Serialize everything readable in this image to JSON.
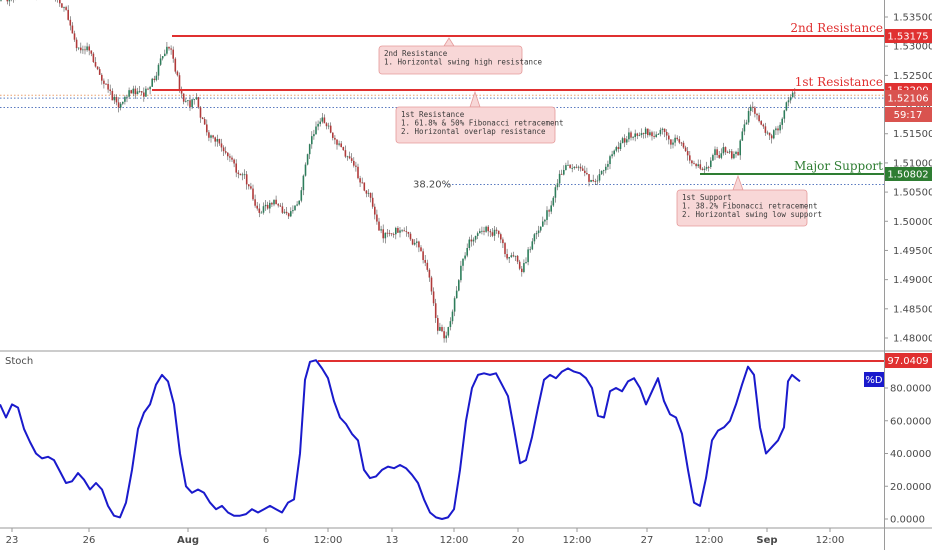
{
  "chart_data": [
    {
      "type": "candlestick",
      "panel": "price",
      "ylim": [
        1.476,
        1.538
      ],
      "y_ticks": [
        "1.53500",
        "1.53000",
        "1.52500",
        "1.52000",
        "1.51500",
        "1.51000",
        "1.50500",
        "1.50000",
        "1.49500",
        "1.49000",
        "1.48500",
        "1.48000"
      ],
      "x_ticks": [
        "23",
        "26",
        "Aug",
        "6",
        "12:00",
        "13",
        "12:00",
        "20",
        "12:00",
        "27",
        "12:00",
        "Sep",
        "12:00"
      ],
      "close_path": [
        [
          0,
          1.5378
        ],
        [
          8,
          1.5384
        ],
        [
          16,
          1.5388
        ],
        [
          24,
          1.539
        ],
        [
          32,
          1.5392
        ],
        [
          40,
          1.539
        ],
        [
          48,
          1.5386
        ],
        [
          56,
          1.538
        ],
        [
          64,
          1.537
        ],
        [
          70,
          1.534
        ],
        [
          76,
          1.5305
        ],
        [
          82,
          1.529
        ],
        [
          88,
          1.53
        ],
        [
          94,
          1.5275
        ],
        [
          100,
          1.525
        ],
        [
          106,
          1.523
        ],
        [
          112,
          1.5215
        ],
        [
          118,
          1.52
        ],
        [
          124,
          1.5205
        ],
        [
          130,
          1.522
        ],
        [
          136,
          1.5225
        ],
        [
          142,
          1.5215
        ],
        [
          148,
          1.5225
        ],
        [
          154,
          1.5245
        ],
        [
          160,
          1.527
        ],
        [
          166,
          1.53
        ],
        [
          172,
          1.5285
        ],
        [
          178,
          1.524
        ],
        [
          184,
          1.5205
        ],
        [
          190,
          1.52
        ],
        [
          196,
          1.521
        ],
        [
          202,
          1.5175
        ],
        [
          208,
          1.5145
        ],
        [
          214,
          1.514
        ],
        [
          220,
          1.513
        ],
        [
          226,
          1.512
        ],
        [
          232,
          1.51
        ],
        [
          238,
          1.5085
        ],
        [
          244,
          1.5075
        ],
        [
          250,
          1.506
        ],
        [
          256,
          1.502
        ],
        [
          262,
          1.502
        ],
        [
          268,
          1.5025
        ],
        [
          274,
          1.503
        ],
        [
          280,
          1.502
        ],
        [
          286,
          1.5015
        ],
        [
          292,
          1.501
        ],
        [
          298,
          1.503
        ],
        [
          304,
          1.508
        ],
        [
          310,
          1.513
        ],
        [
          316,
          1.5165
        ],
        [
          322,
          1.5175
        ],
        [
          328,
          1.516
        ],
        [
          334,
          1.514
        ],
        [
          340,
          1.513
        ],
        [
          346,
          1.5115
        ],
        [
          352,
          1.51
        ],
        [
          358,
          1.508
        ],
        [
          364,
          1.5055
        ],
        [
          370,
          1.504
        ],
        [
          376,
          1.5005
        ],
        [
          382,
          1.4975
        ],
        [
          388,
          1.4975
        ],
        [
          394,
          1.4985
        ],
        [
          400,
          1.498
        ],
        [
          406,
          1.4985
        ],
        [
          412,
          1.4965
        ],
        [
          418,
          1.4965
        ],
        [
          424,
          1.4935
        ],
        [
          430,
          1.4905
        ],
        [
          434,
          1.4855
        ],
        [
          438,
          1.4815
        ],
        [
          444,
          1.4805
        ],
        [
          450,
          1.482
        ],
        [
          456,
          1.488
        ],
        [
          462,
          1.493
        ],
        [
          468,
          1.496
        ],
        [
          474,
          1.4975
        ],
        [
          480,
          1.498
        ],
        [
          486,
          1.4985
        ],
        [
          492,
          1.498
        ],
        [
          498,
          1.4985
        ],
        [
          504,
          1.495
        ],
        [
          510,
          1.4935
        ],
        [
          516,
          1.4935
        ],
        [
          522,
          1.4915
        ],
        [
          528,
          1.4945
        ],
        [
          534,
          1.497
        ],
        [
          540,
          1.4985
        ],
        [
          546,
          1.501
        ],
        [
          552,
          1.503
        ],
        [
          558,
          1.507
        ],
        [
          564,
          1.509
        ],
        [
          570,
          1.5095
        ],
        [
          576,
          1.509
        ],
        [
          582,
          1.5085
        ],
        [
          588,
          1.5075
        ],
        [
          594,
          1.5065
        ],
        [
          600,
          1.508
        ],
        [
          606,
          1.51
        ],
        [
          612,
          1.511
        ],
        [
          618,
          1.5125
        ],
        [
          624,
          1.514
        ],
        [
          630,
          1.515
        ],
        [
          636,
          1.5145
        ],
        [
          642,
          1.5155
        ],
        [
          648,
          1.515
        ],
        [
          654,
          1.514
        ],
        [
          660,
          1.516
        ],
        [
          666,
          1.515
        ],
        [
          672,
          1.5135
        ],
        [
          678,
          1.514
        ],
        [
          684,
          1.5125
        ],
        [
          690,
          1.511
        ],
        [
          696,
          1.5095
        ],
        [
          702,
          1.5085
        ],
        [
          708,
          1.509
        ],
        [
          714,
          1.512
        ],
        [
          720,
          1.5115
        ],
        [
          726,
          1.5125
        ],
        [
          732,
          1.511
        ],
        [
          738,
          1.5115
        ],
        [
          744,
          1.516
        ],
        [
          750,
          1.5195
        ],
        [
          756,
          1.5185
        ],
        [
          762,
          1.516
        ],
        [
          768,
          1.5145
        ],
        [
          774,
          1.515
        ],
        [
          780,
          1.5165
        ],
        [
          786,
          1.52
        ],
        [
          792,
          1.5215
        ],
        [
          798,
          1.5212
        ]
      ],
      "last_price": "1.52106",
      "countdown": "59:17",
      "levels": [
        {
          "name": "2nd Resistance",
          "value": "1.53175",
          "x_start": 172,
          "color": "#e03030"
        },
        {
          "name": "1st Resistance",
          "value": "1.52200",
          "x_start": 152,
          "color": "#e03030"
        },
        {
          "name": "Major Support",
          "value": "1.50802",
          "x_start": 700,
          "color": "#2e7d32"
        }
      ],
      "fib_level": {
        "label": "38.20%",
        "value": 1.5063
      },
      "callouts": [
        {
          "lines": [
            "2nd Resistance",
            "1. Horizontal swing high resistance"
          ]
        },
        {
          "lines": [
            "1st Resistance",
            "1. 61.8% & 50% Fibonacci retracement",
            "2. Horizontal overlap resistance"
          ]
        },
        {
          "lines": [
            "1st Support",
            "1. 38.2% Fibonacci retracement",
            "2. Horizontal swing low support"
          ]
        }
      ],
      "colors": {
        "up": "#2e7d5b",
        "down": "#b03a3a",
        "wick": "#555555"
      }
    },
    {
      "type": "line",
      "panel": "stochastic",
      "indicator_name": "Stoch",
      "series_name": "%D",
      "ylim": [
        -2,
        100
      ],
      "y_ticks": [
        "80.0000",
        "60.0000",
        "40.0000",
        "20.0000",
        "0.0000"
      ],
      "level_value": "97.0409",
      "level_x_start": 318,
      "points": [
        [
          0,
          70
        ],
        [
          6,
          62
        ],
        [
          12,
          70
        ],
        [
          18,
          68
        ],
        [
          24,
          55
        ],
        [
          30,
          47
        ],
        [
          36,
          40
        ],
        [
          42,
          37
        ],
        [
          48,
          38
        ],
        [
          54,
          36
        ],
        [
          60,
          29
        ],
        [
          66,
          22
        ],
        [
          72,
          23
        ],
        [
          78,
          28
        ],
        [
          84,
          24
        ],
        [
          90,
          18
        ],
        [
          96,
          22
        ],
        [
          102,
          18
        ],
        [
          108,
          8
        ],
        [
          114,
          2
        ],
        [
          120,
          1
        ],
        [
          126,
          10
        ],
        [
          132,
          30
        ],
        [
          138,
          55
        ],
        [
          144,
          65
        ],
        [
          150,
          70
        ],
        [
          156,
          82
        ],
        [
          162,
          88
        ],
        [
          168,
          84
        ],
        [
          174,
          70
        ],
        [
          180,
          40
        ],
        [
          186,
          20
        ],
        [
          192,
          16
        ],
        [
          198,
          18
        ],
        [
          204,
          16
        ],
        [
          210,
          10
        ],
        [
          216,
          6
        ],
        [
          222,
          8
        ],
        [
          228,
          4
        ],
        [
          234,
          2
        ],
        [
          240,
          2
        ],
        [
          246,
          3
        ],
        [
          252,
          6
        ],
        [
          258,
          4
        ],
        [
          264,
          6
        ],
        [
          270,
          8
        ],
        [
          276,
          6
        ],
        [
          282,
          4
        ],
        [
          288,
          10
        ],
        [
          294,
          12
        ],
        [
          300,
          40
        ],
        [
          305,
          85
        ],
        [
          310,
          96
        ],
        [
          316,
          97
        ],
        [
          322,
          92
        ],
        [
          328,
          86
        ],
        [
          334,
          72
        ],
        [
          340,
          62
        ],
        [
          346,
          58
        ],
        [
          352,
          52
        ],
        [
          358,
          48
        ],
        [
          364,
          30
        ],
        [
          370,
          25
        ],
        [
          376,
          26
        ],
        [
          382,
          30
        ],
        [
          388,
          32
        ],
        [
          394,
          31
        ],
        [
          400,
          33
        ],
        [
          406,
          31
        ],
        [
          412,
          27
        ],
        [
          418,
          22
        ],
        [
          424,
          12
        ],
        [
          430,
          4
        ],
        [
          436,
          1
        ],
        [
          442,
          0
        ],
        [
          448,
          1
        ],
        [
          454,
          6
        ],
        [
          460,
          30
        ],
        [
          466,
          60
        ],
        [
          472,
          80
        ],
        [
          478,
          88
        ],
        [
          484,
          89
        ],
        [
          490,
          88
        ],
        [
          496,
          89
        ],
        [
          502,
          82
        ],
        [
          508,
          75
        ],
        [
          514,
          55
        ],
        [
          520,
          34
        ],
        [
          526,
          36
        ],
        [
          532,
          50
        ],
        [
          538,
          68
        ],
        [
          544,
          85
        ],
        [
          550,
          88
        ],
        [
          556,
          86
        ],
        [
          562,
          90
        ],
        [
          568,
          92
        ],
        [
          574,
          90
        ],
        [
          580,
          89
        ],
        [
          586,
          86
        ],
        [
          592,
          80
        ],
        [
          598,
          63
        ],
        [
          604,
          62
        ],
        [
          610,
          78
        ],
        [
          616,
          80
        ],
        [
          622,
          78
        ],
        [
          628,
          84
        ],
        [
          634,
          86
        ],
        [
          640,
          80
        ],
        [
          646,
          70
        ],
        [
          652,
          78
        ],
        [
          658,
          86
        ],
        [
          664,
          72
        ],
        [
          670,
          64
        ],
        [
          676,
          62
        ],
        [
          682,
          52
        ],
        [
          688,
          30
        ],
        [
          694,
          10
        ],
        [
          700,
          8
        ],
        [
          706,
          25
        ],
        [
          712,
          48
        ],
        [
          718,
          54
        ],
        [
          724,
          56
        ],
        [
          730,
          60
        ],
        [
          736,
          70
        ],
        [
          742,
          82
        ],
        [
          748,
          93
        ],
        [
          754,
          88
        ],
        [
          760,
          56
        ],
        [
          766,
          40
        ],
        [
          772,
          44
        ],
        [
          778,
          48
        ],
        [
          784,
          56
        ],
        [
          788,
          84
        ],
        [
          792,
          88
        ],
        [
          796,
          86
        ],
        [
          800,
          84
        ]
      ],
      "color": "#1a1acc"
    }
  ]
}
